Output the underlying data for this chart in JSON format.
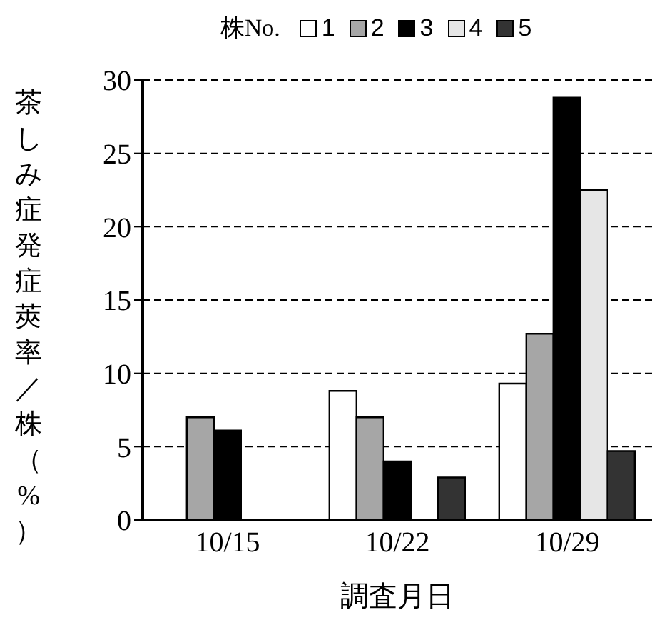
{
  "chart_data": {
    "type": "bar",
    "xlabel": "調査月日",
    "ylabel": "茶しみ症発症莢率／株（%）",
    "legend_title": "株No.",
    "categories": [
      "10/15",
      "10/22",
      "10/29"
    ],
    "series": [
      {
        "name": "1",
        "color": "#ffffff",
        "values": [
          0,
          8.8,
          9.3
        ]
      },
      {
        "name": "2",
        "color": "#a6a6a6",
        "values": [
          7.0,
          7.0,
          12.7
        ]
      },
      {
        "name": "3",
        "color": "#000000",
        "values": [
          6.1,
          4.0,
          28.8
        ]
      },
      {
        "name": "4",
        "color": "#e6e6e6",
        "values": [
          0,
          0,
          22.5
        ]
      },
      {
        "name": "5",
        "color": "#333333",
        "values": [
          0,
          2.9,
          4.7
        ]
      }
    ],
    "ylim": [
      0,
      30
    ],
    "yticks": [
      0,
      5,
      10,
      15,
      20,
      25,
      30
    ],
    "grid": "y",
    "legend": "top"
  }
}
